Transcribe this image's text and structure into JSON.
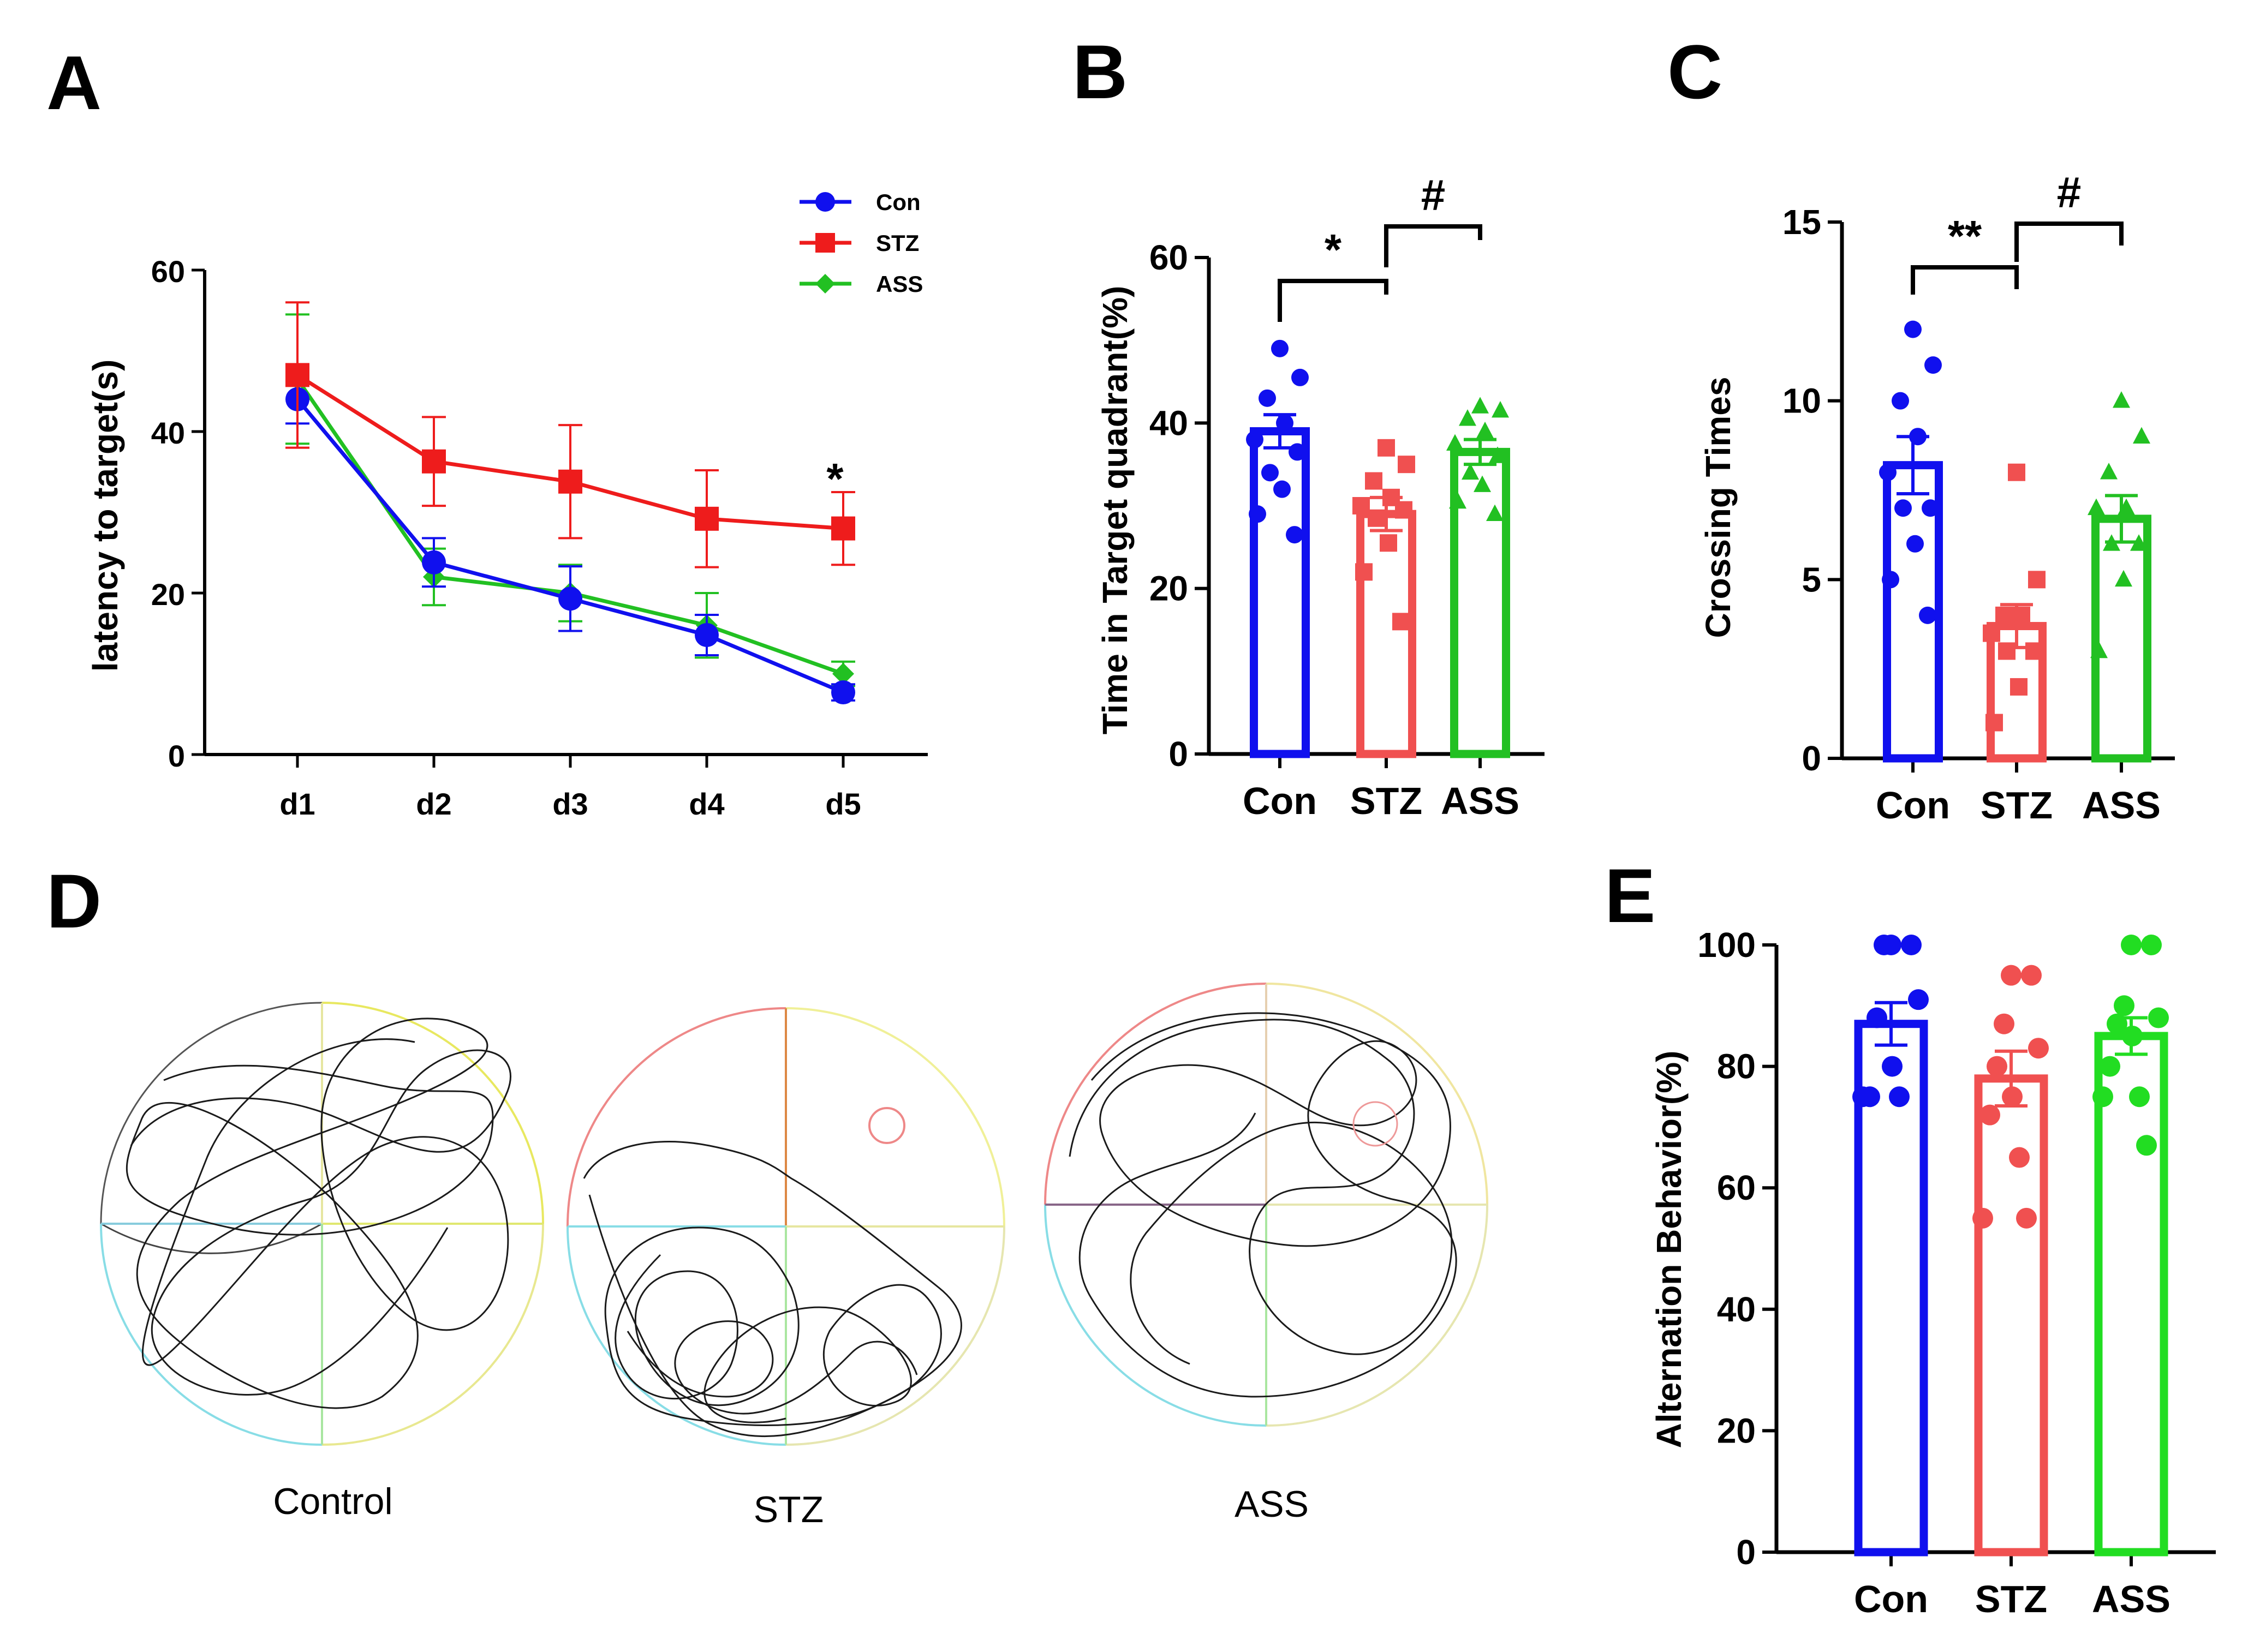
{
  "panels": {
    "A": {
      "letter": "A"
    },
    "B": {
      "letter": "B"
    },
    "C": {
      "letter": "C"
    },
    "D": {
      "letter": "D"
    },
    "E": {
      "letter": "E"
    }
  },
  "colors": {
    "Con": "#1010ee",
    "STZ": "#ee1c1c",
    "ASS": "#22c022",
    "STZ_bar": "#f05050",
    "E_ASS": "#22dd22",
    "axis": "#000000"
  },
  "chart_data": [
    {
      "id": "A",
      "type": "line",
      "title": "",
      "xlabel": "",
      "ylabel": "latency to target(s)",
      "categories": [
        "d1",
        "d2",
        "d3",
        "d4",
        "d5"
      ],
      "ylim": [
        0,
        60
      ],
      "yticks": [
        0,
        20,
        40,
        60
      ],
      "legend_position": "top-right",
      "series": [
        {
          "name": "Con",
          "marker": "circle",
          "values": [
            44,
            23.8,
            19.3,
            14.8,
            7.7
          ],
          "errors": [
            3,
            3,
            4,
            2.5,
            1
          ]
        },
        {
          "name": "STZ",
          "marker": "square",
          "values": [
            47,
            36.3,
            33.8,
            29.2,
            28
          ],
          "errors": [
            9,
            5.5,
            7,
            6,
            4.5
          ]
        },
        {
          "name": "ASS",
          "marker": "diamond",
          "values": [
            46.5,
            22,
            20,
            16,
            10
          ],
          "errors": [
            8,
            3.5,
            3.5,
            4,
            1.5
          ]
        }
      ],
      "annotations": [
        {
          "category": "d5",
          "text": "*"
        }
      ]
    },
    {
      "id": "B",
      "type": "bar",
      "ylabel": "Time in Target quadrant(%)",
      "categories": [
        "Con",
        "STZ",
        "ASS"
      ],
      "ylim": [
        0,
        60
      ],
      "yticks": [
        0,
        20,
        40,
        60
      ],
      "values": [
        39,
        29,
        36.5
      ],
      "errors": [
        2,
        2,
        1.5
      ],
      "points": [
        [
          49,
          45.5,
          43,
          40,
          38,
          36.5,
          34,
          32,
          29,
          26.5
        ],
        [
          37,
          35,
          33,
          31,
          30,
          29.5,
          28.5,
          25.5,
          22,
          16
        ],
        [
          42,
          41.5,
          40.5,
          39,
          37.5,
          36,
          34,
          32.5,
          30.5,
          29
        ]
      ],
      "markers": [
        "circle",
        "square",
        "triangle"
      ],
      "significance": [
        {
          "from": "Con",
          "to": "STZ",
          "text": "*"
        },
        {
          "from": "STZ",
          "to": "ASS",
          "text": "#"
        }
      ]
    },
    {
      "id": "C",
      "type": "bar",
      "ylabel": "Crossing Times",
      "categories": [
        "Con",
        "STZ",
        "ASS"
      ],
      "ylim": [
        0,
        15
      ],
      "yticks": [
        0,
        5,
        10,
        15
      ],
      "values": [
        8.2,
        3.7,
        6.7
      ],
      "errors": [
        0.8,
        0.6,
        0.65
      ],
      "points": [
        [
          12,
          11,
          10,
          9,
          8,
          7,
          7,
          6,
          5,
          4
        ],
        [
          8,
          5,
          4,
          4,
          3.5,
          3,
          3,
          2,
          1
        ],
        [
          10,
          9,
          8,
          7,
          7,
          6,
          6,
          5,
          3
        ]
      ],
      "markers": [
        "circle",
        "square",
        "triangle"
      ],
      "significance": [
        {
          "from": "Con",
          "to": "STZ",
          "text": "**"
        },
        {
          "from": "STZ",
          "to": "ASS",
          "text": "#"
        }
      ]
    },
    {
      "id": "E",
      "type": "bar",
      "ylabel": "Alternation Behavior(%)",
      "categories": [
        "Con",
        "STZ",
        "ASS"
      ],
      "ylim": [
        0,
        100
      ],
      "yticks": [
        0,
        20,
        40,
        60,
        80,
        100
      ],
      "values": [
        87,
        78,
        85
      ],
      "errors": [
        3.5,
        4.5,
        3
      ],
      "points": [
        [
          100,
          100,
          100,
          91,
          88,
          80,
          75,
          75,
          75
        ],
        [
          95,
          95,
          87,
          83,
          80,
          75,
          72,
          65,
          55,
          55
        ],
        [
          100,
          100,
          90,
          88,
          87,
          85,
          80,
          75,
          75,
          67
        ]
      ],
      "markers": [
        "circle",
        "circle",
        "circle"
      ],
      "significance": []
    }
  ],
  "mazes": {
    "captions": [
      "Control",
      "STZ",
      "ASS"
    ]
  }
}
